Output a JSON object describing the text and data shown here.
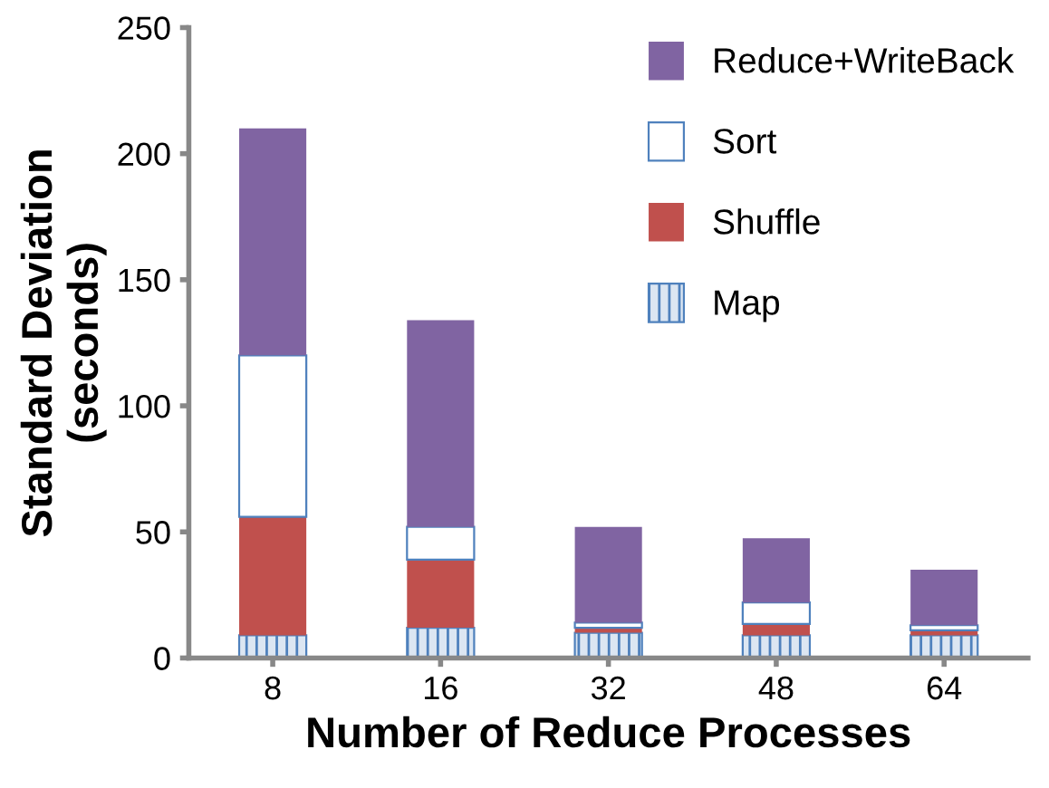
{
  "chart_data": {
    "type": "bar",
    "stacked": true,
    "xlabel": "Number of Reduce Processes",
    "ylabel": "Standard Deviation\n(seconds)",
    "categories": [
      "8",
      "16",
      "32",
      "48",
      "64"
    ],
    "series": [
      {
        "name": "Map",
        "color": "#4f81bd",
        "values": [
          9,
          12,
          10,
          9,
          9
        ]
      },
      {
        "name": "Shuffle",
        "color": "#c0504d",
        "values": [
          47,
          27,
          2,
          4.5,
          2
        ]
      },
      {
        "name": "Sort",
        "color": "#ffffff",
        "values": [
          64,
          13,
          2,
          8.5,
          2
        ]
      },
      {
        "name": "Reduce+WriteBack",
        "color": "#8064a2",
        "values": [
          90,
          82,
          38,
          25.5,
          22
        ]
      }
    ],
    "ylim": [
      0,
      250
    ],
    "yticks": [
      0,
      50,
      100,
      150,
      200,
      250
    ],
    "legend": "top right"
  }
}
